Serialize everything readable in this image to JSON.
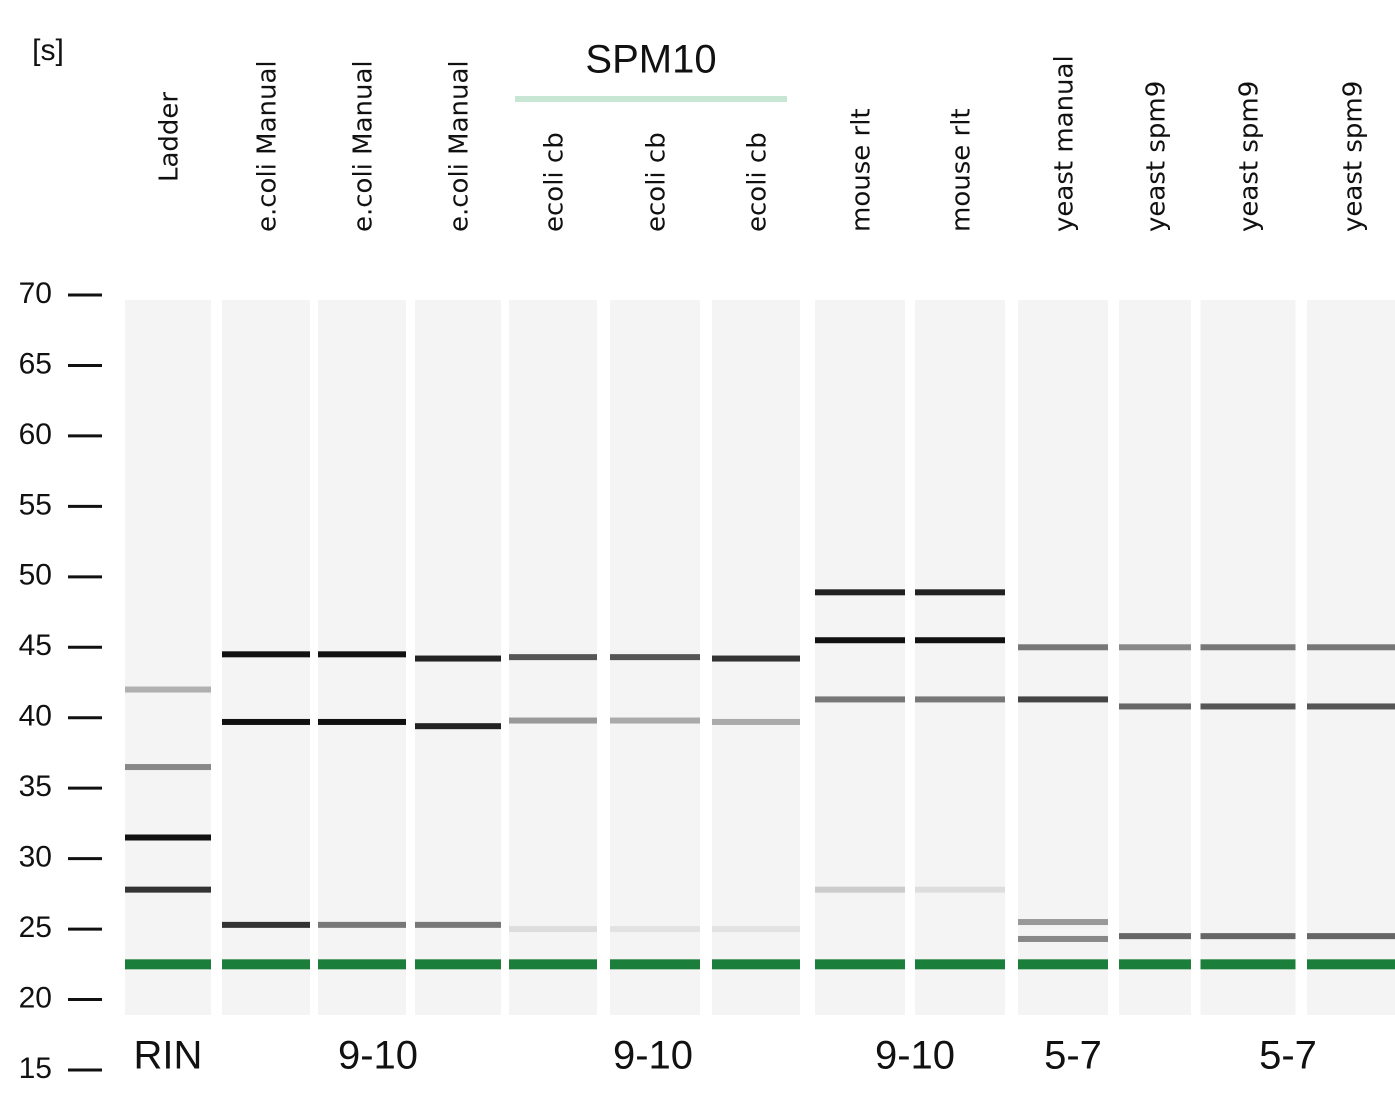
{
  "axis": {
    "unit": "[s]",
    "range": [
      15,
      70
    ],
    "ticks": [
      70,
      65,
      60,
      55,
      50,
      45,
      40,
      35,
      30,
      25,
      20,
      15
    ]
  },
  "group": {
    "label": "SPM10"
  },
  "marker": {
    "time": 22.5,
    "color": "#1b7f3b"
  },
  "lanes": [
    {
      "label": "Ladder",
      "bands": [
        {
          "time": 42,
          "color": "#b0b0b0"
        },
        {
          "time": 36.5,
          "color": "#888888"
        },
        {
          "time": 31.5,
          "color": "#111111"
        },
        {
          "time": 27.8,
          "color": "#333333"
        }
      ]
    },
    {
      "label": "e.coli Manual",
      "bands": [
        {
          "time": 44.5,
          "color": "#111111"
        },
        {
          "time": 39.7,
          "color": "#111111"
        },
        {
          "time": 25.3,
          "color": "#333333"
        }
      ]
    },
    {
      "label": "e.coli Manual",
      "bands": [
        {
          "time": 44.5,
          "color": "#111111"
        },
        {
          "time": 39.7,
          "color": "#111111"
        },
        {
          "time": 25.3,
          "color": "#777777"
        }
      ]
    },
    {
      "label": "e.coli Manual",
      "bands": [
        {
          "time": 44.2,
          "color": "#222222"
        },
        {
          "time": 39.4,
          "color": "#222222"
        },
        {
          "time": 25.3,
          "color": "#777777"
        }
      ]
    },
    {
      "label": "ecoli cb",
      "bands": [
        {
          "time": 44.3,
          "color": "#555555"
        },
        {
          "time": 39.8,
          "color": "#999999"
        },
        {
          "time": 25,
          "color": "#dddddd"
        }
      ]
    },
    {
      "label": "ecoli cb",
      "bands": [
        {
          "time": 44.3,
          "color": "#555555"
        },
        {
          "time": 39.8,
          "color": "#aaaaaa"
        },
        {
          "time": 25,
          "color": "#e2e2e2"
        }
      ]
    },
    {
      "label": "ecoli cb",
      "bands": [
        {
          "time": 44.2,
          "color": "#333333"
        },
        {
          "time": 39.7,
          "color": "#aaaaaa"
        },
        {
          "time": 25,
          "color": "#e2e2e2"
        }
      ]
    },
    {
      "label": "mouse rlt",
      "bands": [
        {
          "time": 48.9,
          "color": "#222222"
        },
        {
          "time": 45.5,
          "color": "#111111"
        },
        {
          "time": 41.3,
          "color": "#777777"
        },
        {
          "time": 27.8,
          "color": "#cccccc"
        }
      ]
    },
    {
      "label": "mouse rlt",
      "bands": [
        {
          "time": 48.9,
          "color": "#222222"
        },
        {
          "time": 45.5,
          "color": "#111111"
        },
        {
          "time": 41.3,
          "color": "#777777"
        },
        {
          "time": 27.8,
          "color": "#dddddd"
        }
      ]
    },
    {
      "label": "yeast manual",
      "bands": [
        {
          "time": 45,
          "color": "#777777"
        },
        {
          "time": 41.3,
          "color": "#444444"
        },
        {
          "time": 25.5,
          "color": "#999999"
        },
        {
          "time": 24.3,
          "color": "#888888"
        }
      ]
    },
    {
      "label": "yeast spm9",
      "bands": [
        {
          "time": 45,
          "color": "#888888"
        },
        {
          "time": 40.8,
          "color": "#666666"
        },
        {
          "time": 24.5,
          "color": "#666666"
        }
      ]
    },
    {
      "label": "yeast spm9",
      "bands": [
        {
          "time": 45,
          "color": "#777777"
        },
        {
          "time": 40.8,
          "color": "#555555"
        },
        {
          "time": 24.5,
          "color": "#666666"
        }
      ]
    },
    {
      "label": "yeast spm9",
      "bands": [
        {
          "time": 45,
          "color": "#777777"
        },
        {
          "time": 40.8,
          "color": "#555555"
        },
        {
          "time": 24.5,
          "color": "#666666"
        }
      ]
    }
  ],
  "rin": {
    "label": "RIN",
    "values": [
      "9-10",
      "9-10",
      "9-10",
      "5-7",
      "5-7"
    ]
  }
}
